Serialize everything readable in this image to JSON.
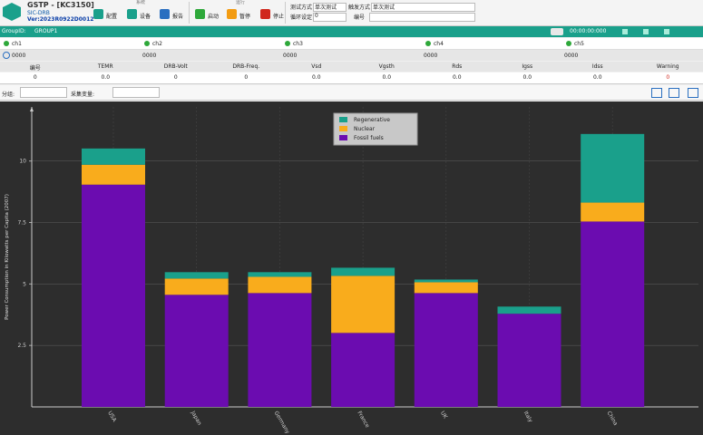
{
  "header": {
    "title": "GSTP - [KC3150]",
    "subtitle": "SIC-DRB",
    "version": "Ver:2023R0922D0012"
  },
  "toolbar": {
    "groups": [
      {
        "label": "系统",
        "buttons": [
          "配置",
          "设备",
          "报告"
        ]
      },
      {
        "label": "运行",
        "buttons": [
          "启动",
          "暂停",
          "停止"
        ]
      }
    ],
    "fields": [
      {
        "label": "测试方式",
        "value": "单次测试"
      },
      {
        "label": "触发方式",
        "value": "单次测试"
      },
      {
        "label": "循环设定",
        "value": "0"
      },
      {
        "label": "编号"
      }
    ]
  },
  "group_bar": {
    "label": "GroupID:",
    "value": "GROUP1",
    "timer": "00:00:00:000"
  },
  "channels": [
    {
      "name": "ch1",
      "value": "0000"
    },
    {
      "name": "ch2",
      "value": "0000"
    },
    {
      "name": "ch3",
      "value": "0000"
    },
    {
      "name": "ch4",
      "value": "0000"
    },
    {
      "name": "ch5",
      "value": "0000"
    }
  ],
  "table": {
    "headers": [
      "编号",
      "TEMR",
      "DRB-Volt",
      "DRB-Freq.",
      "Vsd",
      "Vgsth",
      "Rds",
      "Igss",
      "Idss",
      "Warning"
    ],
    "rows": [
      [
        "0",
        "0.0",
        "0",
        "0",
        "0.0",
        "0.0",
        "0.0",
        "0.0",
        "0.0",
        "0"
      ]
    ]
  },
  "filters": [
    {
      "label": "分组:"
    },
    {
      "label": "采集变量:"
    }
  ],
  "chart_data": {
    "type": "bar",
    "stacked": true,
    "y_label": "Power Consumption in Kilowatts per Capita (2007)",
    "categories": [
      "USA",
      "Japan",
      "Germany",
      "France",
      "UK",
      "Italy",
      "China"
    ],
    "series": [
      {
        "name": "Regenerative",
        "color": "#1aa08b",
        "values": [
          0.66,
          0.26,
          0.19,
          0.33,
          0.11,
          0.29,
          2.79
        ]
      },
      {
        "name": "Nuclear",
        "color": "#f9ac1c",
        "values": [
          0.81,
          0.66,
          0.66,
          2.32,
          0.44,
          0,
          0.77
        ]
      },
      {
        "name": "Fossil fuels",
        "color": "#6b0cb0",
        "values": [
          9.04,
          4.56,
          4.63,
          3.01,
          4.63,
          3.79,
          7.54
        ]
      }
    ],
    "stack_order": "last-at-bottom",
    "ylim": [
      0,
      12.2
    ],
    "yticks": [
      2.5,
      5,
      7.5,
      10
    ],
    "grid": true,
    "legend": "top"
  }
}
